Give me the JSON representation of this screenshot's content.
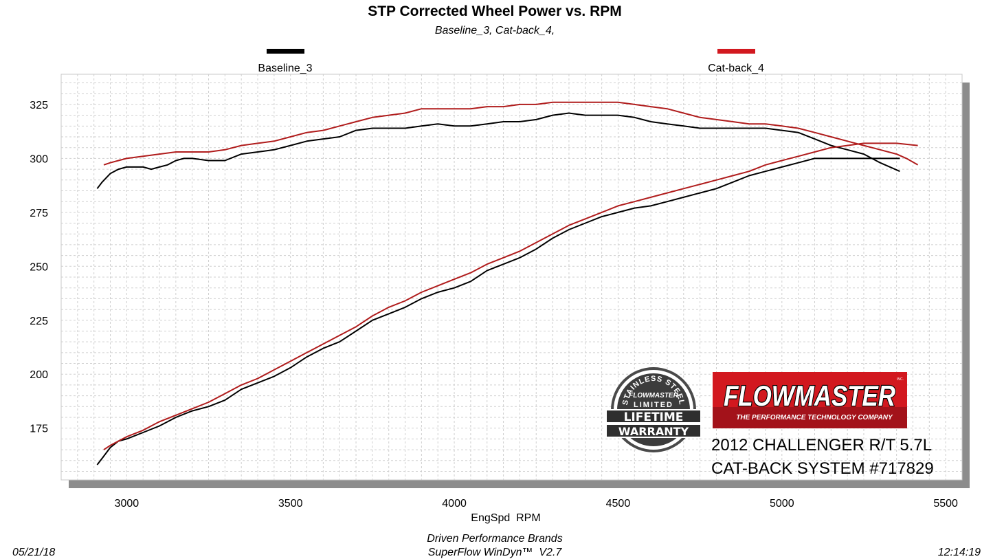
{
  "chart_data": {
    "type": "line",
    "title": "STP Corrected Wheel Power vs. RPM",
    "subtitle": "Baseline_3, Cat-back_4,",
    "xlabel": "EngSpd  RPM",
    "ylabel": "",
    "xlim": [
      2800,
      5550
    ],
    "ylim": [
      151,
      339
    ],
    "xticks": [
      3000,
      3500,
      4000,
      4500,
      5000,
      5500
    ],
    "yticks": [
      175,
      200,
      225,
      250,
      275,
      300,
      325
    ],
    "grid": true,
    "legend_position": "top",
    "series": [
      {
        "name": "Baseline_3",
        "color": "#000000",
        "curves": {
          "upper": [
            [
              2910,
              286
            ],
            [
              2925,
              289
            ],
            [
              2950,
              293
            ],
            [
              2975,
              295
            ],
            [
              3000,
              296
            ],
            [
              3025,
              296
            ],
            [
              3050,
              296
            ],
            [
              3075,
              295
            ],
            [
              3100,
              296
            ],
            [
              3125,
              297
            ],
            [
              3150,
              299
            ],
            [
              3175,
              300
            ],
            [
              3200,
              300
            ],
            [
              3250,
              299
            ],
            [
              3300,
              299
            ],
            [
              3350,
              302
            ],
            [
              3400,
              303
            ],
            [
              3450,
              304
            ],
            [
              3500,
              306
            ],
            [
              3550,
              308
            ],
            [
              3600,
              309
            ],
            [
              3650,
              310
            ],
            [
              3700,
              313
            ],
            [
              3750,
              314
            ],
            [
              3800,
              314
            ],
            [
              3850,
              314
            ],
            [
              3900,
              315
            ],
            [
              3950,
              316
            ],
            [
              4000,
              315
            ],
            [
              4050,
              315
            ],
            [
              4100,
              316
            ],
            [
              4150,
              317
            ],
            [
              4200,
              317
            ],
            [
              4250,
              318
            ],
            [
              4300,
              320
            ],
            [
              4350,
              321
            ],
            [
              4400,
              320
            ],
            [
              4450,
              320
            ],
            [
              4500,
              320
            ],
            [
              4550,
              319
            ],
            [
              4600,
              317
            ],
            [
              4650,
              316
            ],
            [
              4700,
              315
            ],
            [
              4750,
              314
            ],
            [
              4800,
              314
            ],
            [
              4850,
              314
            ],
            [
              4900,
              314
            ],
            [
              4950,
              314
            ],
            [
              5000,
              313
            ],
            [
              5050,
              312
            ],
            [
              5100,
              309
            ],
            [
              5150,
              306
            ],
            [
              5200,
              304
            ],
            [
              5250,
              302
            ],
            [
              5300,
              298
            ],
            [
              5330,
              296
            ],
            [
              5360,
              294
            ]
          ],
          "lower": [
            [
              2910,
              158
            ],
            [
              2925,
              161
            ],
            [
              2950,
              166
            ],
            [
              2975,
              169
            ],
            [
              3000,
              170
            ],
            [
              3050,
              173
            ],
            [
              3100,
              176
            ],
            [
              3150,
              180
            ],
            [
              3200,
              183
            ],
            [
              3250,
              185
            ],
            [
              3300,
              188
            ],
            [
              3350,
              193
            ],
            [
              3400,
              196
            ],
            [
              3450,
              199
            ],
            [
              3500,
              203
            ],
            [
              3550,
              208
            ],
            [
              3600,
              212
            ],
            [
              3650,
              215
            ],
            [
              3700,
              220
            ],
            [
              3750,
              225
            ],
            [
              3800,
              228
            ],
            [
              3850,
              231
            ],
            [
              3900,
              235
            ],
            [
              3950,
              238
            ],
            [
              4000,
              240
            ],
            [
              4050,
              243
            ],
            [
              4100,
              248
            ],
            [
              4150,
              251
            ],
            [
              4200,
              254
            ],
            [
              4250,
              258
            ],
            [
              4300,
              263
            ],
            [
              4350,
              267
            ],
            [
              4400,
              270
            ],
            [
              4450,
              273
            ],
            [
              4500,
              275
            ],
            [
              4550,
              277
            ],
            [
              4600,
              278
            ],
            [
              4650,
              280
            ],
            [
              4700,
              282
            ],
            [
              4750,
              284
            ],
            [
              4800,
              286
            ],
            [
              4850,
              289
            ],
            [
              4900,
              292
            ],
            [
              4950,
              294
            ],
            [
              5000,
              296
            ],
            [
              5050,
              298
            ],
            [
              5100,
              300
            ],
            [
              5150,
              300
            ],
            [
              5200,
              300
            ],
            [
              5250,
              300
            ],
            [
              5300,
              300
            ],
            [
              5360,
              300
            ]
          ]
        }
      },
      {
        "name": "Cat-back_4",
        "color": "#b01c1c",
        "curves": {
          "upper": [
            [
              2930,
              297
            ],
            [
              2950,
              298
            ],
            [
              2975,
              299
            ],
            [
              3000,
              300
            ],
            [
              3050,
              301
            ],
            [
              3100,
              302
            ],
            [
              3150,
              303
            ],
            [
              3200,
              303
            ],
            [
              3250,
              303
            ],
            [
              3300,
              304
            ],
            [
              3350,
              306
            ],
            [
              3400,
              307
            ],
            [
              3450,
              308
            ],
            [
              3500,
              310
            ],
            [
              3550,
              312
            ],
            [
              3600,
              313
            ],
            [
              3650,
              315
            ],
            [
              3700,
              317
            ],
            [
              3750,
              319
            ],
            [
              3800,
              320
            ],
            [
              3850,
              321
            ],
            [
              3900,
              323
            ],
            [
              3950,
              323
            ],
            [
              4000,
              323
            ],
            [
              4050,
              323
            ],
            [
              4100,
              324
            ],
            [
              4150,
              324
            ],
            [
              4200,
              325
            ],
            [
              4250,
              325
            ],
            [
              4300,
              326
            ],
            [
              4350,
              326
            ],
            [
              4400,
              326
            ],
            [
              4450,
              326
            ],
            [
              4500,
              326
            ],
            [
              4550,
              325
            ],
            [
              4600,
              324
            ],
            [
              4650,
              323
            ],
            [
              4700,
              321
            ],
            [
              4750,
              319
            ],
            [
              4800,
              318
            ],
            [
              4850,
              317
            ],
            [
              4900,
              316
            ],
            [
              4950,
              316
            ],
            [
              5000,
              315
            ],
            [
              5050,
              314
            ],
            [
              5100,
              312
            ],
            [
              5150,
              310
            ],
            [
              5200,
              308
            ],
            [
              5250,
              306
            ],
            [
              5300,
              304
            ],
            [
              5350,
              302
            ],
            [
              5380,
              300
            ],
            [
              5415,
              297
            ]
          ],
          "lower": [
            [
              2930,
              165
            ],
            [
              2950,
              167
            ],
            [
              3000,
              171
            ],
            [
              3050,
              174
            ],
            [
              3100,
              178
            ],
            [
              3150,
              181
            ],
            [
              3200,
              184
            ],
            [
              3250,
              187
            ],
            [
              3300,
              191
            ],
            [
              3350,
              195
            ],
            [
              3400,
              198
            ],
            [
              3450,
              202
            ],
            [
              3500,
              206
            ],
            [
              3550,
              210
            ],
            [
              3600,
              214
            ],
            [
              3650,
              218
            ],
            [
              3700,
              222
            ],
            [
              3750,
              227
            ],
            [
              3800,
              231
            ],
            [
              3850,
              234
            ],
            [
              3900,
              238
            ],
            [
              3950,
              241
            ],
            [
              4000,
              244
            ],
            [
              4050,
              247
            ],
            [
              4100,
              251
            ],
            [
              4150,
              254
            ],
            [
              4200,
              257
            ],
            [
              4250,
              261
            ],
            [
              4300,
              265
            ],
            [
              4350,
              269
            ],
            [
              4400,
              272
            ],
            [
              4450,
              275
            ],
            [
              4500,
              278
            ],
            [
              4550,
              280
            ],
            [
              4600,
              282
            ],
            [
              4650,
              284
            ],
            [
              4700,
              286
            ],
            [
              4750,
              288
            ],
            [
              4800,
              290
            ],
            [
              4850,
              292
            ],
            [
              4900,
              294
            ],
            [
              4950,
              297
            ],
            [
              5000,
              299
            ],
            [
              5050,
              301
            ],
            [
              5100,
              303
            ],
            [
              5150,
              305
            ],
            [
              5200,
              306
            ],
            [
              5250,
              307
            ],
            [
              5300,
              307
            ],
            [
              5350,
              307
            ],
            [
              5415,
              306
            ]
          ]
        }
      }
    ]
  },
  "logos": {
    "warranty_text": [
      "STAINLESS STEEL",
      "FLOWMASTER",
      "LIMITED",
      "LIFETIME",
      "WARRANTY"
    ],
    "flowmaster_name": "FLOWMASTER",
    "flowmaster_tagline": "THE PERFORMANCE TECHNOLOGY COMPANY",
    "flowmaster_inc": "INC."
  },
  "caption": {
    "line1": "2012 CHALLENGER R/T 5.7L",
    "line2": "CAT-BACK SYSTEM #717829"
  },
  "footer": {
    "date": "05/21/18",
    "company": "Driven Performance Brands",
    "software": "SuperFlow WinDyn™  V2.7",
    "time": "12:14:19"
  },
  "colors": {
    "grid": "#cfcfcf",
    "frame": "#c8c8c8",
    "shadow": "#8c8c8c",
    "brand_red": "#d2181f"
  }
}
